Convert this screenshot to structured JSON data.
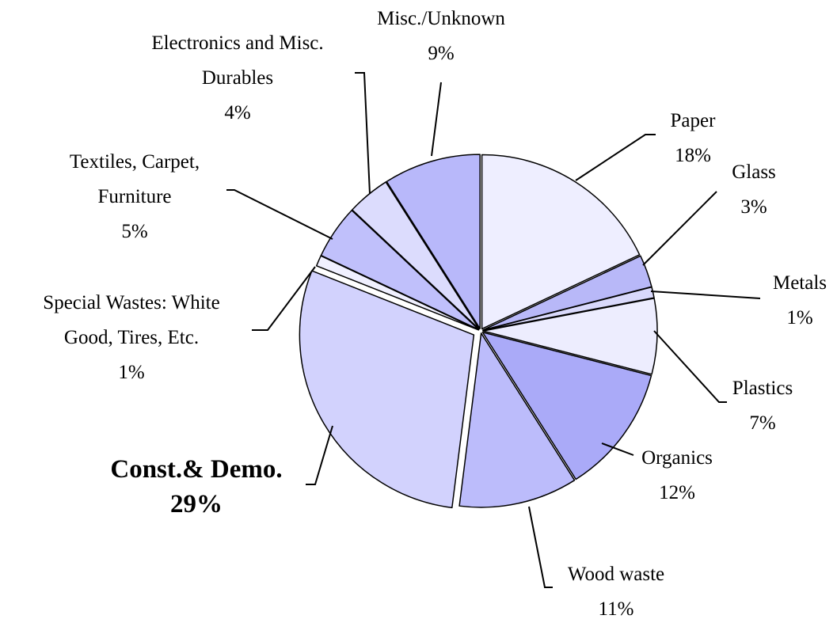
{
  "chart_data": {
    "type": "pie",
    "title": "",
    "slices": [
      {
        "label": [
          "Paper"
        ],
        "percent_label": "18%",
        "value": 18,
        "color": "#eeeeff"
      },
      {
        "label": [
          "Glass"
        ],
        "percent_label": "3%",
        "value": 3,
        "color": "#b8b8f8"
      },
      {
        "label": [
          "Metals"
        ],
        "percent_label": "1%",
        "value": 1,
        "color": "#d9d9fb"
      },
      {
        "label": [
          "Plastics"
        ],
        "percent_label": "7%",
        "value": 7,
        "color": "#ededfe"
      },
      {
        "label": [
          "Organics"
        ],
        "percent_label": "12%",
        "value": 12,
        "color": "#aaaaf8"
      },
      {
        "label": [
          "Wood waste"
        ],
        "percent_label": "11%",
        "value": 11,
        "color": "#bcbcfb"
      },
      {
        "label": [
          "Const.& Demo."
        ],
        "percent_label": "29%",
        "value": 29,
        "color": "#d2d2fd",
        "bold": true
      },
      {
        "label": [
          "Special Wastes: White",
          "Good, Tires, Etc."
        ],
        "percent_label": "1%",
        "value": 1,
        "color": "#f0f0ff"
      },
      {
        "label": [
          "Textiles, Carpet,",
          "Furniture"
        ],
        "percent_label": "5%",
        "value": 5,
        "color": "#c0c0fb"
      },
      {
        "label": [
          "Electronics and Misc.",
          "Durables"
        ],
        "percent_label": "4%",
        "value": 4,
        "color": "#dcdcfd"
      },
      {
        "label": [
          "Misc./Unknown"
        ],
        "percent_label": "9%",
        "value": 9,
        "color": "#b8b8fa"
      }
    ]
  }
}
